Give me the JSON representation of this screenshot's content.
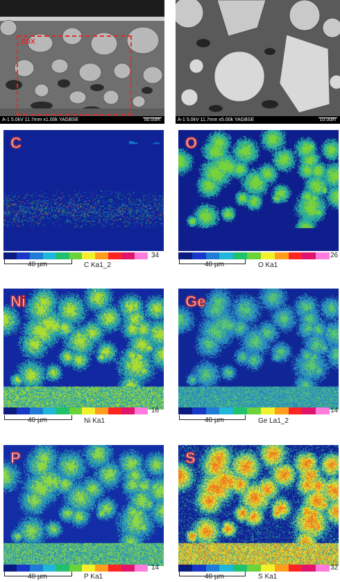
{
  "sem": {
    "left_info": "A-1 5.0kV 11.7mm x1.00k YAGBSE",
    "left_scale": "50.0um",
    "right_info": "A-1 5.0kV 11.7mm x5.00k YAGBSE",
    "right_scale": "10.0um",
    "eds_region_label": "EDX"
  },
  "colorbar": [
    "#0a1a7e",
    "#1738c8",
    "#1f7bd6",
    "#1fb6d8",
    "#20c06d",
    "#6cd23a",
    "#f2f02a",
    "#ff9d1d",
    "#ff2424",
    "#e0146b",
    "#ff7cdd"
  ],
  "maps": [
    {
      "element": "C",
      "line": "C Ka1_2",
      "max": "34",
      "scale": "40 µm",
      "palette": "c"
    },
    {
      "element": "O",
      "line": "O Ka1",
      "max": "26",
      "scale": "40 µm",
      "palette": "o"
    },
    {
      "element": "Ni",
      "line": "Ni Ka1",
      "max": "16",
      "scale": "40 µm",
      "palette": "ni"
    },
    {
      "element": "Ge",
      "line": "Ge La1_2",
      "max": "14",
      "scale": "40 µm",
      "palette": "ge"
    },
    {
      "element": "P",
      "line": "P Ka1",
      "max": "14",
      "scale": "40 µm",
      "palette": "p"
    },
    {
      "element": "S",
      "line": "S Ka1",
      "max": "32",
      "scale": "40 µm",
      "palette": "s"
    }
  ]
}
